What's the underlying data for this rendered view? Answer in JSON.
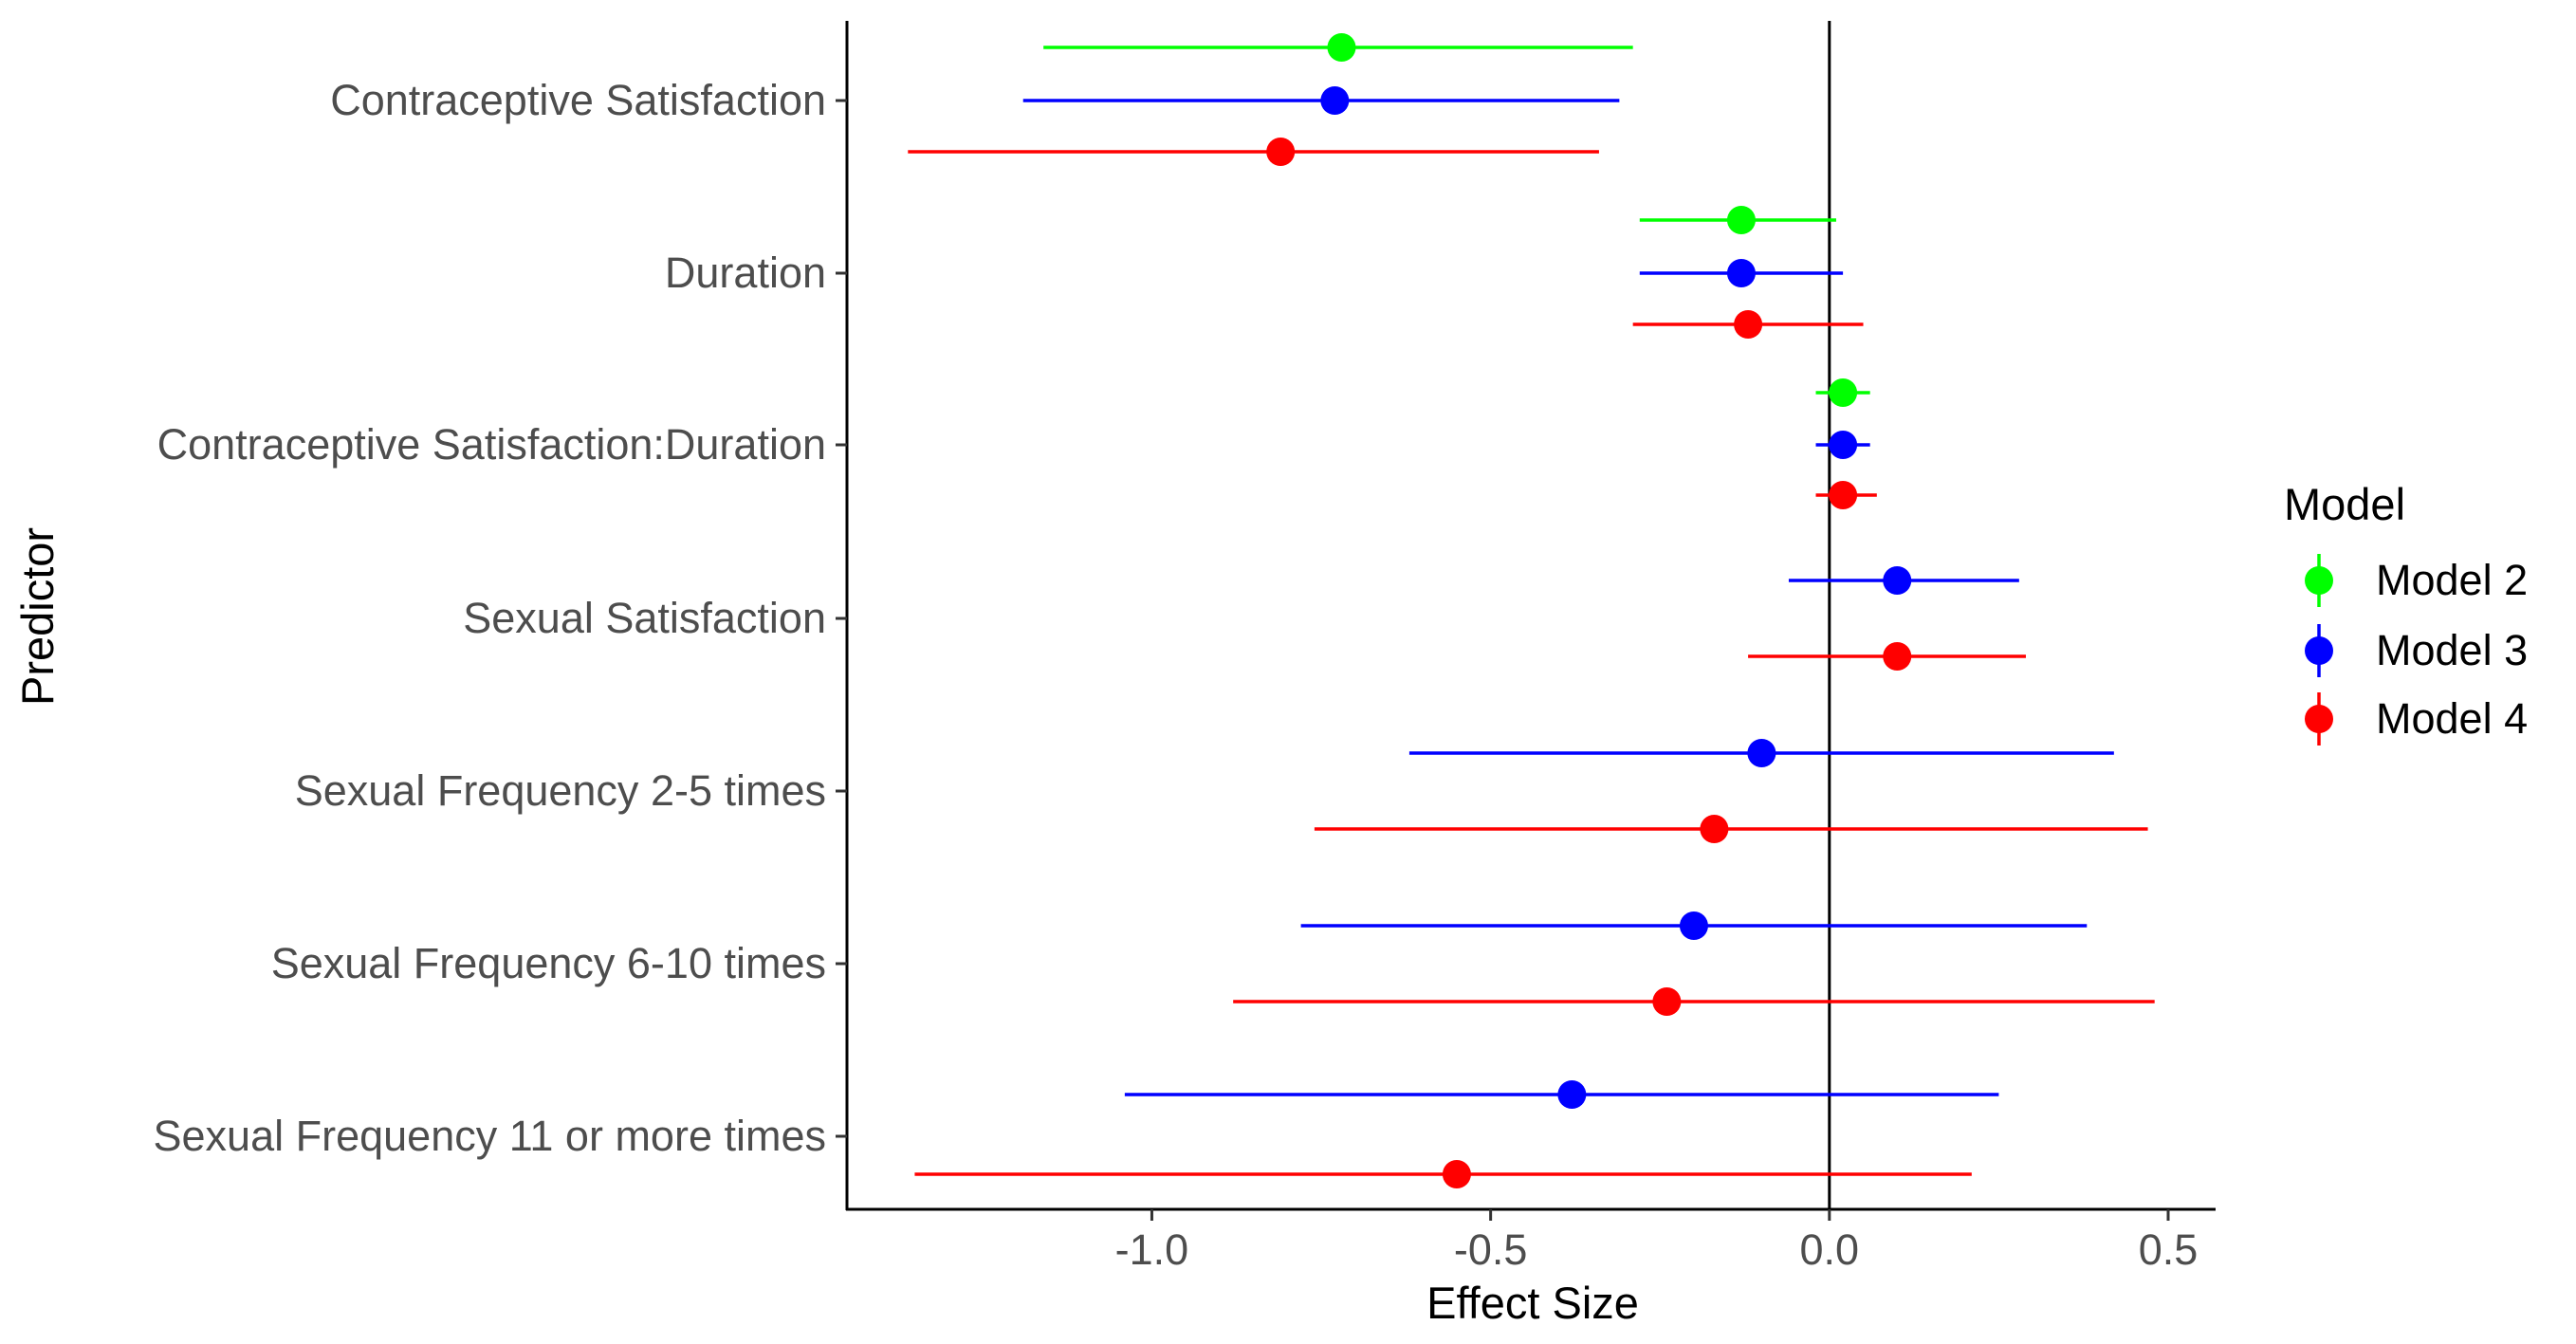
{
  "chart_data": {
    "type": "scatter",
    "subtype": "forest-plot-with-error-bars",
    "title": "",
    "xlabel": "Effect Size",
    "ylabel": "Predictor",
    "xlim": [
      -1.45,
      0.57
    ],
    "x_ticks": [
      -1.0,
      -0.5,
      0.0,
      0.5
    ],
    "x_tick_labels": [
      "-1.0",
      "-0.5",
      "0.0",
      "0.5"
    ],
    "reference_line_x": 0,
    "grid": false,
    "legend": {
      "title": "Model",
      "position": "right"
    },
    "categories": [
      "Contraceptive Satisfaction",
      "Duration",
      "Contraceptive Satisfaction:Duration",
      "Sexual Satisfaction",
      "Sexual Frequency 2-5 times",
      "Sexual Frequency 6-10 times",
      "Sexual Frequency 11 or more times"
    ],
    "series": [
      {
        "name": "Model 2",
        "color": "#00ff00",
        "points": [
          {
            "category": "Contraceptive Satisfaction",
            "estimate": -0.72,
            "lower": -1.16,
            "upper": -0.29
          },
          {
            "category": "Duration",
            "estimate": -0.13,
            "lower": -0.28,
            "upper": 0.01
          },
          {
            "category": "Contraceptive Satisfaction:Duration",
            "estimate": 0.02,
            "lower": -0.02,
            "upper": 0.06
          }
        ]
      },
      {
        "name": "Model 3",
        "color": "#0000ff",
        "points": [
          {
            "category": "Contraceptive Satisfaction",
            "estimate": -0.73,
            "lower": -1.19,
            "upper": -0.31
          },
          {
            "category": "Duration",
            "estimate": -0.13,
            "lower": -0.28,
            "upper": 0.02
          },
          {
            "category": "Contraceptive Satisfaction:Duration",
            "estimate": 0.02,
            "lower": -0.02,
            "upper": 0.06
          },
          {
            "category": "Sexual Satisfaction",
            "estimate": 0.1,
            "lower": -0.06,
            "upper": 0.28
          },
          {
            "category": "Sexual Frequency 2-5 times",
            "estimate": -0.1,
            "lower": -0.62,
            "upper": 0.42
          },
          {
            "category": "Sexual Frequency 6-10 times",
            "estimate": -0.2,
            "lower": -0.78,
            "upper": 0.38
          },
          {
            "category": "Sexual Frequency 11 or more times",
            "estimate": -0.38,
            "lower": -1.04,
            "upper": 0.25
          }
        ]
      },
      {
        "name": "Model 4",
        "color": "#ff0000",
        "points": [
          {
            "category": "Contraceptive Satisfaction",
            "estimate": -0.81,
            "lower": -1.36,
            "upper": -0.34
          },
          {
            "category": "Duration",
            "estimate": -0.12,
            "lower": -0.29,
            "upper": 0.05
          },
          {
            "category": "Contraceptive Satisfaction:Duration",
            "estimate": 0.02,
            "lower": -0.02,
            "upper": 0.07
          },
          {
            "category": "Sexual Satisfaction",
            "estimate": 0.1,
            "lower": -0.12,
            "upper": 0.29
          },
          {
            "category": "Sexual Frequency 2-5 times",
            "estimate": -0.17,
            "lower": -0.76,
            "upper": 0.47
          },
          {
            "category": "Sexual Frequency 6-10 times",
            "estimate": -0.24,
            "lower": -0.88,
            "upper": 0.48
          },
          {
            "category": "Sexual Frequency 11 or more times",
            "estimate": -0.55,
            "lower": -1.35,
            "upper": 0.21
          }
        ]
      }
    ]
  }
}
